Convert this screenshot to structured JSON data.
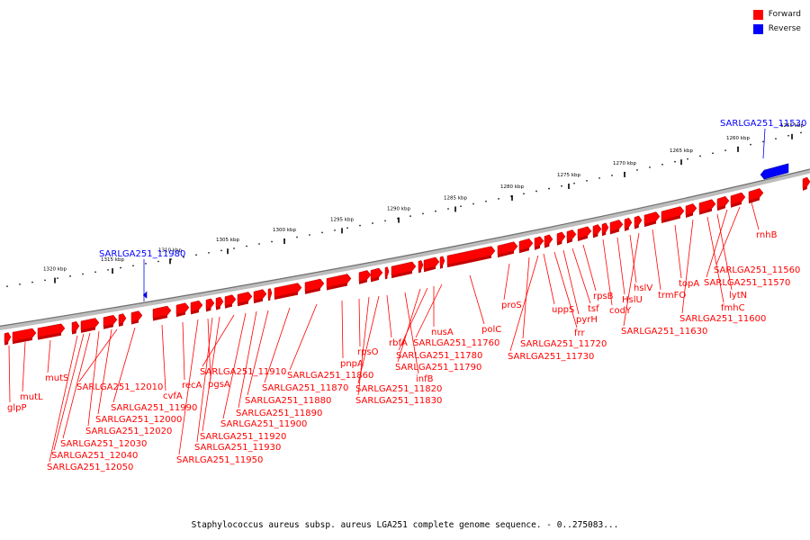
{
  "legend": {
    "forward_label": "Forward",
    "reverse_label": "Reverse",
    "forward_color": "#ff0000",
    "reverse_color": "#0000ff"
  },
  "caption": "Staphylococcus aureus subsp. aureus LGA251 complete genome sequence. - 0..275083...",
  "scale_ticks": [
    "1255 kbp",
    "1260 kbp",
    "1265 kbp",
    "1270 kbp",
    "1275 kbp",
    "1280 kbp",
    "1285 kbp",
    "1290 kbp",
    "1295 kbp",
    "1300 kbp",
    "1305 kbp",
    "1310 kbp",
    "1315 kbp",
    "1320 kbp"
  ],
  "genes": [
    {
      "name": "SARLGA251_11530",
      "strand": "reverse"
    },
    {
      "name": "rnhB",
      "strand": "forward"
    },
    {
      "name": "SARLGA251_11560",
      "strand": "forward"
    },
    {
      "name": "SARLGA251_11570",
      "strand": "forward"
    },
    {
      "name": "lytN",
      "strand": "forward"
    },
    {
      "name": "fmhC",
      "strand": "forward"
    },
    {
      "name": "SARLGA251_11600",
      "strand": "forward"
    },
    {
      "name": "topA",
      "strand": "forward"
    },
    {
      "name": "trmFO",
      "strand": "forward"
    },
    {
      "name": "SARLGA251_11630",
      "strand": "forward"
    },
    {
      "name": "hslV",
      "strand": "forward"
    },
    {
      "name": "HslU",
      "strand": "forward"
    },
    {
      "name": "codY",
      "strand": "forward"
    },
    {
      "name": "rpsB",
      "strand": "forward"
    },
    {
      "name": "tsf",
      "strand": "forward"
    },
    {
      "name": "pyrH",
      "strand": "forward"
    },
    {
      "name": "frr",
      "strand": "forward"
    },
    {
      "name": "uppS",
      "strand": "forward"
    },
    {
      "name": "SARLGA251_11720",
      "strand": "forward"
    },
    {
      "name": "SARLGA251_11730",
      "strand": "forward"
    },
    {
      "name": "proS",
      "strand": "forward"
    },
    {
      "name": "polC",
      "strand": "forward"
    },
    {
      "name": "SARLGA251_11760",
      "strand": "forward"
    },
    {
      "name": "nusA",
      "strand": "forward"
    },
    {
      "name": "SARLGA251_11780",
      "strand": "forward"
    },
    {
      "name": "SARLGA251_11790",
      "strand": "forward"
    },
    {
      "name": "infB",
      "strand": "forward"
    },
    {
      "name": "rbfA",
      "strand": "forward"
    },
    {
      "name": "SARLGA251_11820",
      "strand": "forward"
    },
    {
      "name": "SARLGA251_11830",
      "strand": "forward"
    },
    {
      "name": "rpsO",
      "strand": "forward"
    },
    {
      "name": "pnpA",
      "strand": "forward"
    },
    {
      "name": "SARLGA251_11860",
      "strand": "forward"
    },
    {
      "name": "SARLGA251_11870",
      "strand": "forward"
    },
    {
      "name": "SARLGA251_11880",
      "strand": "forward"
    },
    {
      "name": "SARLGA251_11890",
      "strand": "forward"
    },
    {
      "name": "SARLGA251_11900",
      "strand": "forward"
    },
    {
      "name": "SARLGA251_11910",
      "strand": "forward"
    },
    {
      "name": "SARLGA251_11920",
      "strand": "forward"
    },
    {
      "name": "SARLGA251_11930",
      "strand": "forward"
    },
    {
      "name": "pgsA",
      "strand": "forward"
    },
    {
      "name": "SARLGA251_11950",
      "strand": "forward"
    },
    {
      "name": "recA",
      "strand": "forward"
    },
    {
      "name": "SARLGA251_11980",
      "strand": "reverse"
    },
    {
      "name": "cvfA",
      "strand": "forward"
    },
    {
      "name": "SARLGA251_11990",
      "strand": "forward"
    },
    {
      "name": "SARLGA251_12000",
      "strand": "forward"
    },
    {
      "name": "SARLGA251_12010",
      "strand": "forward"
    },
    {
      "name": "SARLGA251_12020",
      "strand": "forward"
    },
    {
      "name": "SARLGA251_12030",
      "strand": "forward"
    },
    {
      "name": "SARLGA251_12040",
      "strand": "forward"
    },
    {
      "name": "SARLGA251_12050",
      "strand": "forward"
    },
    {
      "name": "mutS",
      "strand": "forward"
    },
    {
      "name": "mutL",
      "strand": "forward"
    },
    {
      "name": "glpP",
      "strand": "forward"
    }
  ]
}
